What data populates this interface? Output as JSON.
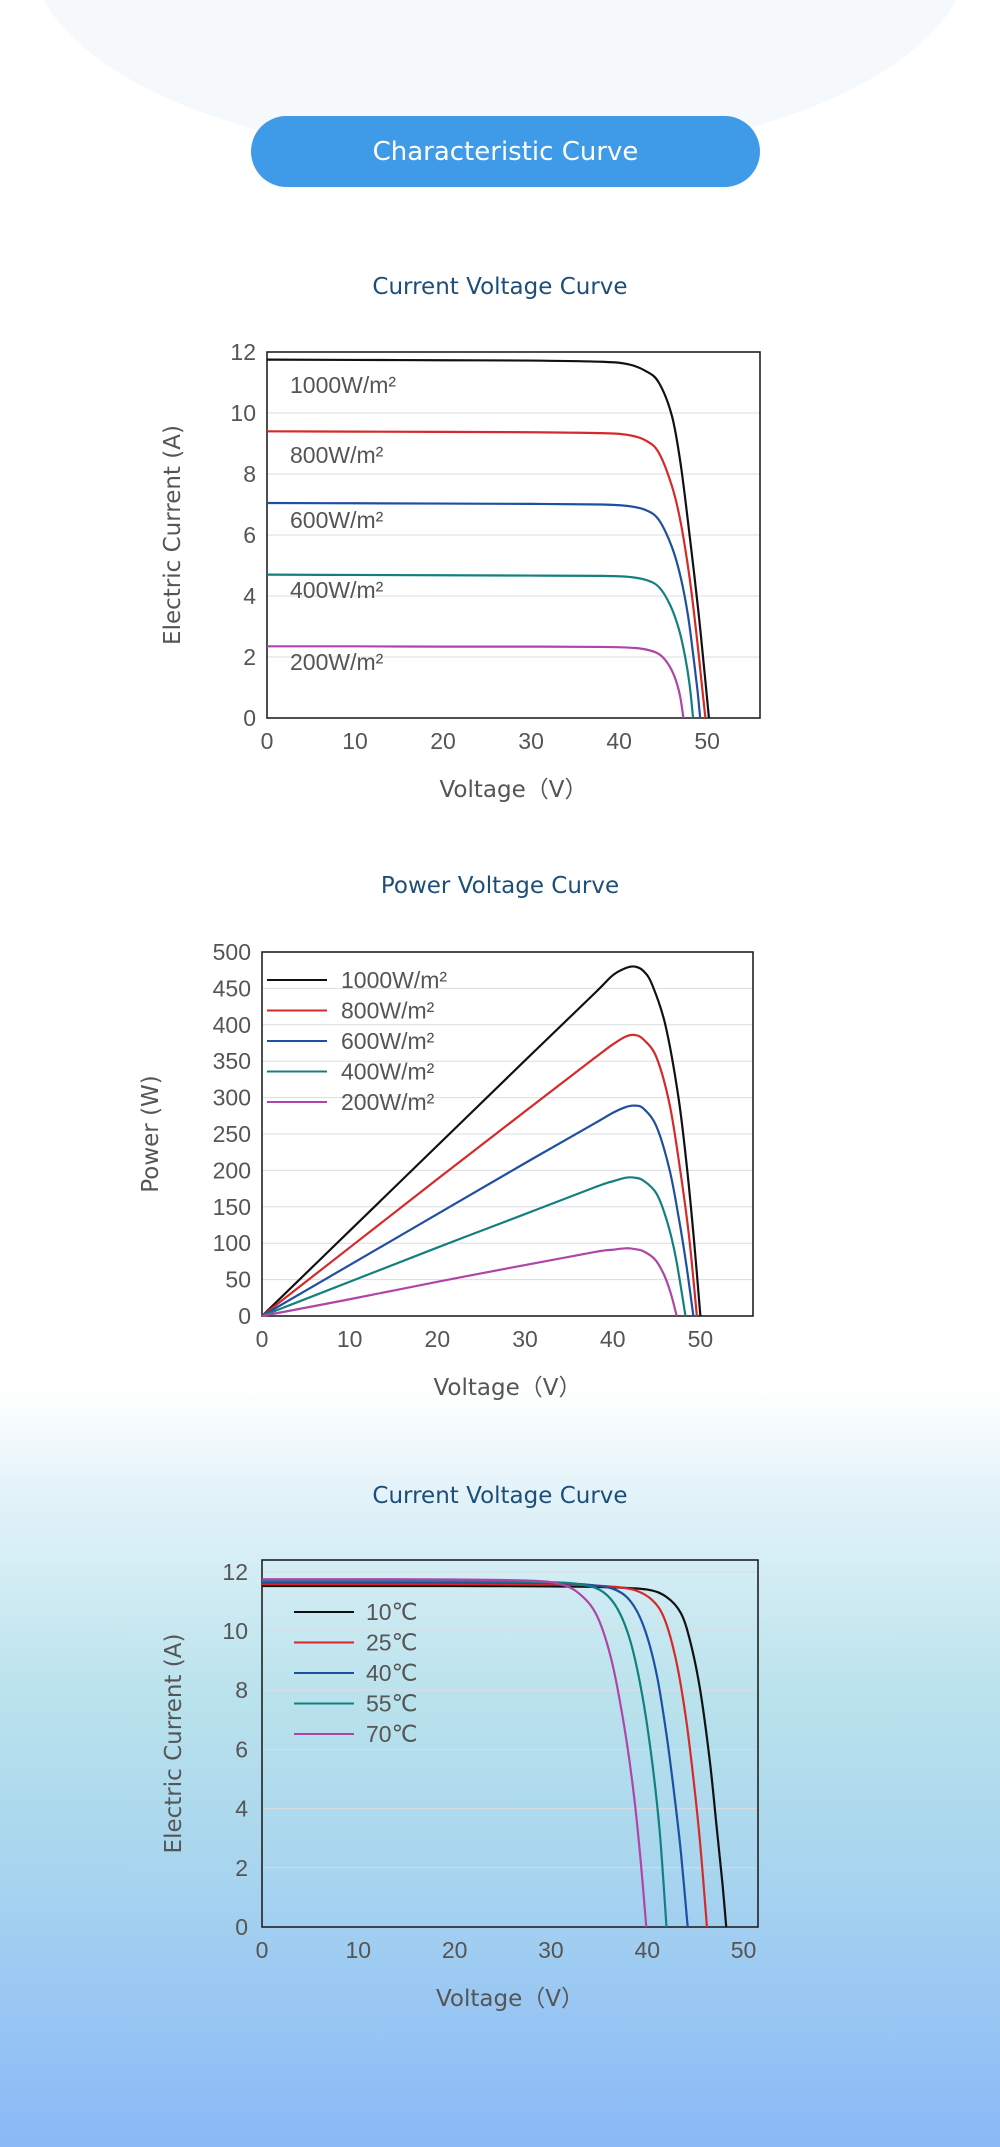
{
  "header": {
    "title": "Characteristic Curve"
  },
  "chart_data": [
    {
      "type": "line",
      "title": "Current  Voltage Curve",
      "xlabel": "Voltage（V）",
      "ylabel": "Electric Current (A)",
      "xlim": [
        0,
        56
      ],
      "ylim": [
        0,
        12
      ],
      "xticks": [
        0,
        10,
        20,
        30,
        40,
        50
      ],
      "yticks": [
        0,
        2,
        4,
        6,
        8,
        10,
        12
      ],
      "grid": "horizontal",
      "legend": "inline labels",
      "series": [
        {
          "name": "1000W/m²",
          "color": "#111111",
          "x": [
            0,
            10,
            20,
            30,
            38,
            41,
            43,
            44.5,
            46,
            47,
            48,
            49,
            49.8,
            50.2
          ],
          "y": [
            11.75,
            11.74,
            11.73,
            11.72,
            11.68,
            11.6,
            11.38,
            11.0,
            9.9,
            8.3,
            6.0,
            3.5,
            1.2,
            0
          ]
        },
        {
          "name": "800W/m²",
          "color": "#d62a2a",
          "x": [
            0,
            10,
            20,
            30,
            38,
            41,
            43,
            44.5,
            46,
            47,
            48,
            48.8,
            49.5,
            49.8
          ],
          "y": [
            9.4,
            9.39,
            9.38,
            9.37,
            9.34,
            9.28,
            9.1,
            8.7,
            7.6,
            6.4,
            4.6,
            2.7,
            0.8,
            0
          ]
        },
        {
          "name": "600W/m²",
          "color": "#1f4fa0",
          "x": [
            0,
            10,
            20,
            30,
            38,
            41,
            43,
            44.5,
            46,
            47,
            47.8,
            48.4,
            48.9,
            49.2
          ],
          "y": [
            7.05,
            7.04,
            7.03,
            7.02,
            7.0,
            6.95,
            6.82,
            6.5,
            5.6,
            4.6,
            3.4,
            2.1,
            0.9,
            0
          ]
        },
        {
          "name": "400W/m²",
          "color": "#138080",
          "x": [
            0,
            10,
            20,
            30,
            38,
            41,
            43,
            44.5,
            45.8,
            46.8,
            47.5,
            48.0,
            48.4
          ],
          "y": [
            4.7,
            4.69,
            4.68,
            4.67,
            4.66,
            4.63,
            4.53,
            4.3,
            3.7,
            2.9,
            2.0,
            1.1,
            0
          ]
        },
        {
          "name": "200W/m²",
          "color": "#b045a8",
          "x": [
            0,
            10,
            20,
            30,
            38,
            41,
            43,
            44.5,
            45.5,
            46.3,
            46.9,
            47.3
          ],
          "y": [
            2.35,
            2.35,
            2.34,
            2.34,
            2.33,
            2.31,
            2.25,
            2.1,
            1.8,
            1.35,
            0.75,
            0
          ]
        }
      ]
    },
    {
      "type": "line",
      "title": "Power Voltage Curve",
      "xlabel": "Voltage（V）",
      "ylabel": "Power (W)",
      "xlim": [
        0,
        56
      ],
      "ylim": [
        0,
        500
      ],
      "xticks": [
        0,
        10,
        20,
        30,
        40,
        50
      ],
      "yticks": [
        0,
        50,
        100,
        150,
        200,
        250,
        300,
        350,
        400,
        450,
        500
      ],
      "grid": "horizontal",
      "legend": "top-left",
      "series": [
        {
          "name": "1000W/m²",
          "color": "#111111",
          "x": [
            0,
            10,
            20,
            30,
            38,
            40,
            41.5,
            42.5,
            43.5,
            44.5,
            46,
            47.5,
            48.5,
            49.3,
            50
          ],
          "y": [
            0,
            117,
            234,
            351,
            444,
            468,
            478,
            480,
            474,
            455,
            400,
            300,
            200,
            100,
            0
          ]
        },
        {
          "name": "800W/m²",
          "color": "#d62a2a",
          "x": [
            0,
            10,
            20,
            30,
            38,
            40,
            41.5,
            42.5,
            43.5,
            45,
            46.5,
            47.7,
            48.7,
            49.6
          ],
          "y": [
            0,
            94,
            188,
            281,
            355,
            373,
            384,
            386,
            380,
            355,
            290,
            200,
            110,
            0
          ]
        },
        {
          "name": "600W/m²",
          "color": "#1f4fa0",
          "x": [
            0,
            10,
            20,
            30,
            38,
            40,
            41.5,
            42.5,
            43.5,
            45,
            46.5,
            47.6,
            48.4,
            49.2
          ],
          "y": [
            0,
            70,
            140,
            210,
            265,
            279,
            287,
            289,
            285,
            260,
            200,
            130,
            70,
            0
          ]
        },
        {
          "name": "400W/m²",
          "color": "#138080",
          "x": [
            0,
            10,
            20,
            30,
            38,
            40,
            41.5,
            42.5,
            43.5,
            45,
            46.2,
            47.2,
            48.3
          ],
          "y": [
            0,
            47,
            94,
            140,
            177,
            185,
            190,
            190,
            186,
            168,
            130,
            80,
            0
          ]
        },
        {
          "name": "200W/m²",
          "color": "#b045a8",
          "x": [
            0,
            10,
            20,
            30,
            38,
            40,
            41.5,
            42.5,
            43.5,
            44.8,
            45.8,
            46.6,
            47.3
          ],
          "y": [
            0,
            23,
            47,
            70,
            88,
            91,
            93,
            92,
            89,
            78,
            58,
            32,
            0
          ]
        }
      ]
    },
    {
      "type": "line",
      "title": "Current  Voltage Curve",
      "xlabel": "Voltage（V）",
      "ylabel": "Electric Current (A)",
      "xlim": [
        0,
        51.5
      ],
      "ylim": [
        0,
        12.4
      ],
      "xticks": [
        0,
        10,
        20,
        30,
        40,
        50
      ],
      "yticks": [
        0,
        2,
        4,
        6,
        8,
        10,
        12
      ],
      "grid": "horizontal",
      "legend": "top-left",
      "series": [
        {
          "name": "10℃",
          "color": "#111111",
          "x": [
            0,
            10,
            20,
            30,
            36,
            40,
            42,
            43.5,
            44.5,
            45.5,
            46.5,
            47.2,
            47.8,
            48.2
          ],
          "y": [
            11.52,
            11.52,
            11.52,
            11.51,
            11.48,
            11.4,
            11.15,
            10.6,
            9.6,
            8.0,
            5.6,
            3.4,
            1.5,
            0
          ]
        },
        {
          "name": "25℃",
          "color": "#d62a2a",
          "x": [
            0,
            10,
            20,
            30,
            35,
            38.5,
            40.5,
            41.8,
            43,
            44,
            44.8,
            45.5,
            46.2
          ],
          "y": [
            11.58,
            11.58,
            11.58,
            11.57,
            11.53,
            11.4,
            11.05,
            10.4,
            9.0,
            7.1,
            5.0,
            2.8,
            0
          ]
        },
        {
          "name": "40℃",
          "color": "#1f4fa0",
          "x": [
            0,
            10,
            20,
            30,
            34,
            36.8,
            38.5,
            39.8,
            41,
            42,
            42.8,
            43.5,
            44.2
          ],
          "y": [
            11.64,
            11.64,
            11.64,
            11.62,
            11.56,
            11.38,
            10.9,
            10.0,
            8.5,
            6.5,
            4.5,
            2.5,
            0
          ]
        },
        {
          "name": "55℃",
          "color": "#138080",
          "x": [
            0,
            10,
            20,
            30,
            33.5,
            35.5,
            37,
            38.3,
            39.5,
            40.5,
            41.3,
            42
          ],
          "y": [
            11.7,
            11.7,
            11.69,
            11.65,
            11.55,
            11.3,
            10.7,
            9.6,
            7.8,
            5.6,
            3.2,
            0
          ]
        },
        {
          "name": "70℃",
          "color": "#b045a8",
          "x": [
            0,
            10,
            20,
            28,
            31,
            33,
            34.8,
            36.3,
            37.6,
            38.6,
            39.3,
            39.9
          ],
          "y": [
            11.75,
            11.75,
            11.74,
            11.7,
            11.58,
            11.25,
            10.5,
            9.0,
            6.8,
            4.5,
            2.3,
            0
          ]
        }
      ]
    }
  ]
}
